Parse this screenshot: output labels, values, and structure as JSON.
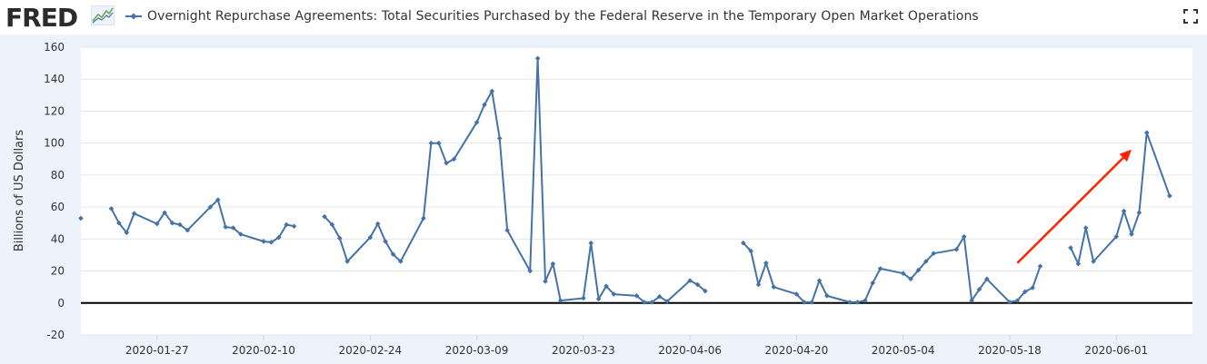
{
  "header": {
    "logo_text": "FRED",
    "series_title": "Overnight Repurchase Agreements: Total Securities Purchased by the Federal Reserve in the Temporary Open Market Operations"
  },
  "colors": {
    "series": "#4572a7",
    "axis_zero": "#000000",
    "grid": "#e6e6e6",
    "plot_bg": "#ffffff",
    "page_bg": "#ecf3fb",
    "arrow": "#ff2200"
  },
  "chart_data": {
    "type": "line",
    "title": "Overnight Repurchase Agreements: Total Securities Purchased by the Federal Reserve in the Temporary Open Market Operations",
    "xlabel": "",
    "ylabel": "Billions of US Dollars",
    "ylim": [
      -20,
      160
    ],
    "yticks": [
      -20,
      0,
      20,
      40,
      60,
      80,
      100,
      120,
      140,
      160
    ],
    "xlim": [
      "2020-01-17",
      "2020-06-11"
    ],
    "xticks": [
      "2020-01-27",
      "2020-02-10",
      "2020-02-24",
      "2020-03-09",
      "2020-03-23",
      "2020-04-06",
      "2020-04-20",
      "2020-05-04",
      "2020-05-18",
      "2020-06-01"
    ],
    "grid": true,
    "series": [
      {
        "name": "Overnight Repurchase Agreements: Total Securities Purchased by the Federal Reserve in the Temporary Open Market Operations",
        "segments": [
          [
            [
              "2020-01-17",
              53
            ]
          ],
          [
            [
              "2020-01-21",
              59
            ],
            [
              "2020-01-22",
              50
            ],
            [
              "2020-01-23",
              44
            ],
            [
              "2020-01-24",
              56
            ],
            [
              "2020-01-27",
              49.5
            ],
            [
              "2020-01-28",
              56.5
            ],
            [
              "2020-01-29",
              50
            ],
            [
              "2020-01-30",
              49
            ],
            [
              "2020-01-31",
              45.5
            ],
            [
              "2020-02-03",
              60
            ],
            [
              "2020-02-04",
              64.5
            ],
            [
              "2020-02-05",
              47.5
            ],
            [
              "2020-02-06",
              47
            ],
            [
              "2020-02-07",
              43
            ],
            [
              "2020-02-10",
              38.5
            ],
            [
              "2020-02-11",
              38
            ],
            [
              "2020-02-12",
              41
            ],
            [
              "2020-02-13",
              49
            ],
            [
              "2020-02-14",
              48
            ]
          ],
          [
            [
              "2020-02-18",
              54
            ],
            [
              "2020-02-19",
              49
            ],
            [
              "2020-02-20",
              40.5
            ],
            [
              "2020-02-21",
              26
            ],
            [
              "2020-02-24",
              41
            ],
            [
              "2020-02-25",
              49.5
            ],
            [
              "2020-02-26",
              38.5
            ],
            [
              "2020-02-27",
              30.5
            ],
            [
              "2020-02-28",
              26
            ],
            [
              "2020-03-02",
              53
            ],
            [
              "2020-03-03",
              100
            ],
            [
              "2020-03-04",
              100
            ],
            [
              "2020-03-05",
              87.5
            ],
            [
              "2020-03-06",
              90
            ],
            [
              "2020-03-09",
              113
            ],
            [
              "2020-03-10",
              124
            ],
            [
              "2020-03-11",
              132.5
            ],
            [
              "2020-03-12",
              103
            ],
            [
              "2020-03-13",
              45.5
            ],
            [
              "2020-03-16",
              20
            ],
            [
              "2020-03-17",
              153
            ],
            [
              "2020-03-18",
              13.5
            ],
            [
              "2020-03-19",
              24.5
            ],
            [
              "2020-03-20",
              1.5
            ],
            [
              "2020-03-23",
              3
            ],
            [
              "2020-03-24",
              37.5
            ],
            [
              "2020-03-25",
              2.5
            ],
            [
              "2020-03-26",
              10.5
            ],
            [
              "2020-03-27",
              5.5
            ],
            [
              "2020-03-30",
              4.5
            ],
            [
              "2020-03-31",
              0.5
            ],
            [
              "2020-04-01",
              0.5
            ],
            [
              "2020-04-02",
              4
            ],
            [
              "2020-04-03",
              1
            ],
            [
              "2020-04-06",
              14
            ],
            [
              "2020-04-07",
              11.5
            ],
            [
              "2020-04-08",
              7.5
            ]
          ],
          [
            [
              "2020-04-13",
              37.5
            ],
            [
              "2020-04-14",
              32.5
            ],
            [
              "2020-04-15",
              11.5
            ],
            [
              "2020-04-16",
              25
            ],
            [
              "2020-04-17",
              10
            ],
            [
              "2020-04-20",
              5.5
            ],
            [
              "2020-04-21",
              0.5
            ],
            [
              "2020-04-22",
              0.5
            ],
            [
              "2020-04-23",
              14
            ],
            [
              "2020-04-24",
              4.5
            ],
            [
              "2020-04-27",
              0.5
            ],
            [
              "2020-04-28",
              0.5
            ],
            [
              "2020-04-29",
              1.5
            ],
            [
              "2020-04-30",
              12.5
            ],
            [
              "2020-05-01",
              21.5
            ],
            [
              "2020-05-04",
              18.5
            ],
            [
              "2020-05-05",
              15
            ],
            [
              "2020-05-06",
              20.5
            ],
            [
              "2020-05-07",
              26
            ],
            [
              "2020-05-08",
              31
            ],
            [
              "2020-05-11",
              33.5
            ],
            [
              "2020-05-12",
              41.5
            ],
            [
              "2020-05-13",
              1.5
            ],
            [
              "2020-05-14",
              8.5
            ],
            [
              "2020-05-15",
              15
            ],
            [
              "2020-05-18",
              0.5
            ],
            [
              "2020-05-19",
              1.5
            ],
            [
              "2020-05-20",
              7
            ],
            [
              "2020-05-21",
              9.5
            ],
            [
              "2020-05-22",
              23
            ]
          ],
          [
            [
              "2020-05-26",
              34.5
            ],
            [
              "2020-05-27",
              24.5
            ],
            [
              "2020-05-28",
              47
            ],
            [
              "2020-05-29",
              26
            ],
            [
              "2020-06-01",
              41.5
            ],
            [
              "2020-06-02",
              57.5
            ],
            [
              "2020-06-03",
              43
            ],
            [
              "2020-06-04",
              56.5
            ],
            [
              "2020-06-05",
              106.5
            ],
            [
              "2020-06-08",
              67
            ]
          ]
        ]
      }
    ],
    "annotations": [
      {
        "type": "arrow",
        "from": [
          "2020-05-19",
          25
        ],
        "to": [
          "2020-06-03",
          96
        ]
      }
    ]
  }
}
